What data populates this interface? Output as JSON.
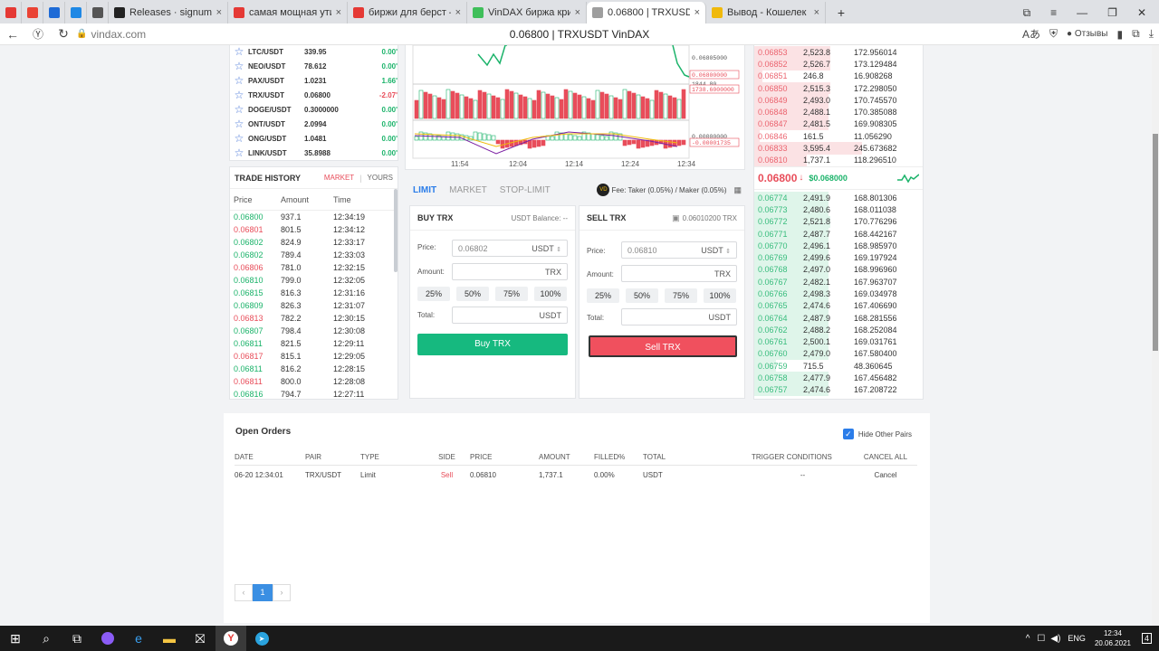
{
  "browser": {
    "tabs": [
      {
        "label": "",
        "icon": "yandex-icon",
        "color": "#e53935"
      },
      {
        "label": "",
        "icon": "gmail-icon",
        "color": "#ea4335"
      },
      {
        "label": "",
        "icon": "chart-app-icon",
        "color": "#1e6bd6"
      },
      {
        "label": "",
        "icon": "circle-app-icon",
        "color": "#1e88e5"
      },
      {
        "label": "",
        "icon": "settings-app-icon",
        "color": "#555555"
      },
      {
        "label": "Releases · signum-network",
        "icon": "github-icon",
        "color": "#222222"
      },
      {
        "label": "самая мощная утилита дл",
        "icon": "yandex-icon",
        "color": "#e53935"
      },
      {
        "label": "биржи для берст — Яндек",
        "icon": "yandex-icon",
        "color": "#e53935"
      },
      {
        "label": "VinDAX биржа криптовал",
        "icon": "vindax-icon",
        "color": "#3fbf5a"
      },
      {
        "label": "0.06800 | TRXUSDT VinD",
        "icon": "page-icon",
        "color": "#9e9e9e",
        "active": true
      },
      {
        "label": "Вывод - Кошелек - Безоп",
        "icon": "wallet-icon",
        "color": "#f0b90b"
      }
    ],
    "url": "vindax.com",
    "title": "0.06800 | TRXUSDT VinDAX",
    "reviews_label": "Отзывы"
  },
  "markets": [
    {
      "pair": "LTC/USDT",
      "price": "339.95",
      "change": "0.00'",
      "dir": "up"
    },
    {
      "pair": "NEO/USDT",
      "price": "78.612",
      "change": "0.00'",
      "dir": "up"
    },
    {
      "pair": "PAX/USDT",
      "price": "1.0231",
      "change": "1.66'",
      "dir": "up"
    },
    {
      "pair": "TRX/USDT",
      "price": "0.06800",
      "change": "-2.07'",
      "dir": "down"
    },
    {
      "pair": "DOGE/USDT",
      "price": "0.3000000",
      "change": "0.00'",
      "dir": "up"
    },
    {
      "pair": "ONT/USDT",
      "price": "2.0994",
      "change": "0.00'",
      "dir": "up"
    },
    {
      "pair": "ONG/USDT",
      "price": "1.0481",
      "change": "0.00'",
      "dir": "up"
    },
    {
      "pair": "LINK/USDT",
      "price": "35.8988",
      "change": "0.00'",
      "dir": "up"
    }
  ],
  "trade_history": {
    "title": "TRADE HISTORY",
    "tab_market": "MARKET",
    "tab_yours": "YOURS",
    "col_price": "Price",
    "col_amount": "Amount",
    "col_time": "Time",
    "rows": [
      {
        "price": "0.06800",
        "amount": "937.1",
        "time": "12:34:19",
        "dir": "up"
      },
      {
        "price": "0.06801",
        "amount": "801.5",
        "time": "12:34:12",
        "dir": "down"
      },
      {
        "price": "0.06802",
        "amount": "824.9",
        "time": "12:33:17",
        "dir": "up"
      },
      {
        "price": "0.06802",
        "amount": "789.4",
        "time": "12:33:03",
        "dir": "up"
      },
      {
        "price": "0.06806",
        "amount": "781.0",
        "time": "12:32:15",
        "dir": "down"
      },
      {
        "price": "0.06810",
        "amount": "799.0",
        "time": "12:32:05",
        "dir": "up"
      },
      {
        "price": "0.06815",
        "amount": "816.3",
        "time": "12:31:16",
        "dir": "up"
      },
      {
        "price": "0.06809",
        "amount": "826.3",
        "time": "12:31:07",
        "dir": "up"
      },
      {
        "price": "0.06813",
        "amount": "782.2",
        "time": "12:30:15",
        "dir": "down"
      },
      {
        "price": "0.06807",
        "amount": "798.4",
        "time": "12:30:08",
        "dir": "up"
      },
      {
        "price": "0.06811",
        "amount": "821.5",
        "time": "12:29:11",
        "dir": "up"
      },
      {
        "price": "0.06817",
        "amount": "815.1",
        "time": "12:29:05",
        "dir": "down"
      },
      {
        "price": "0.06811",
        "amount": "816.2",
        "time": "12:28:15",
        "dir": "up"
      },
      {
        "price": "0.06811",
        "amount": "800.0",
        "time": "12:28:08",
        "dir": "down"
      },
      {
        "price": "0.06816",
        "amount": "794.7",
        "time": "12:27:11",
        "dir": "up"
      }
    ]
  },
  "chart": {
    "time_labels": [
      "11:54",
      "12:04",
      "12:14",
      "12:24",
      "12:34"
    ],
    "price_labels": [
      "0.06805000",
      "0.06800000",
      "1844.80",
      "1738.6000000",
      "0.00000000",
      "-0.00001735"
    ]
  },
  "order_form": {
    "tab_limit": "LIMIT",
    "tab_market": "MARKET",
    "tab_stop": "STOP-LIMIT",
    "fee": "Fee: Taker (0.05%) / Maker (0.05%)",
    "fee_badge": "VD",
    "buy": {
      "title": "BUY TRX",
      "balance": "USDT Balance: --",
      "price_label": "Price:",
      "price_value": "0.06802",
      "price_unit": "USDT",
      "amount_label": "Amount:",
      "amount_unit": "TRX",
      "total_label": "Total:",
      "total_unit": "USDT",
      "button": "Buy TRX"
    },
    "sell": {
      "title": "SELL TRX",
      "balance": "0.06010200 TRX",
      "price_label": "Price:",
      "price_value": "0.06810",
      "price_unit": "USDT",
      "amount_label": "Amount:",
      "amount_unit": "TRX",
      "total_label": "Total:",
      "total_unit": "USDT",
      "button": "Sell TRX"
    },
    "percents": [
      "25%",
      "50%",
      "75%",
      "100%"
    ]
  },
  "orderbook": {
    "asks": [
      {
        "price": "0.06853",
        "amount": "2,523.8",
        "total": "172.956014",
        "depth": 0.45
      },
      {
        "price": "0.06852",
        "amount": "2,526.7",
        "total": "173.129484",
        "depth": 0.45
      },
      {
        "price": "0.06851",
        "amount": "246.8",
        "total": "16.908268",
        "depth": 0.05
      },
      {
        "price": "0.06850",
        "amount": "2,515.3",
        "total": "172.298050",
        "depth": 0.45
      },
      {
        "price": "0.06849",
        "amount": "2,493.0",
        "total": "170.745570",
        "depth": 0.44
      },
      {
        "price": "0.06848",
        "amount": "2,488.1",
        "total": "170.385088",
        "depth": 0.44
      },
      {
        "price": "0.06847",
        "amount": "2,481.5",
        "total": "169.908305",
        "depth": 0.44
      },
      {
        "price": "0.06846",
        "amount": "161.5",
        "total": "11.056290",
        "depth": 0.03
      },
      {
        "price": "0.06833",
        "amount": "3,595.4",
        "total": "245.673682",
        "depth": 0.64
      },
      {
        "price": "0.06810",
        "amount": "1,737.1",
        "total": "118.296510",
        "depth": 0.31
      }
    ],
    "last_price": "0.06800",
    "last_arrow": "↓",
    "last_usd": "$0.068000",
    "bids": [
      {
        "price": "0.06774",
        "amount": "2,491.9",
        "total": "168.801306",
        "depth": 0.44
      },
      {
        "price": "0.06773",
        "amount": "2,480.6",
        "total": "168.011038",
        "depth": 0.44
      },
      {
        "price": "0.06772",
        "amount": "2,521.8",
        "total": "170.776296",
        "depth": 0.45
      },
      {
        "price": "0.06771",
        "amount": "2,487.7",
        "total": "168.442167",
        "depth": 0.44
      },
      {
        "price": "0.06770",
        "amount": "2,496.1",
        "total": "168.985970",
        "depth": 0.44
      },
      {
        "price": "0.06769",
        "amount": "2,499.6",
        "total": "169.197924",
        "depth": 0.44
      },
      {
        "price": "0.06768",
        "amount": "2,497.0",
        "total": "168.996960",
        "depth": 0.44
      },
      {
        "price": "0.06767",
        "amount": "2,482.1",
        "total": "167.963707",
        "depth": 0.44
      },
      {
        "price": "0.06766",
        "amount": "2,498.3",
        "total": "169.034978",
        "depth": 0.44
      },
      {
        "price": "0.06765",
        "amount": "2,474.6",
        "total": "167.406690",
        "depth": 0.44
      },
      {
        "price": "0.06764",
        "amount": "2,487.9",
        "total": "168.281556",
        "depth": 0.44
      },
      {
        "price": "0.06762",
        "amount": "2,488.2",
        "total": "168.252084",
        "depth": 0.44
      },
      {
        "price": "0.06761",
        "amount": "2,500.1",
        "total": "169.031761",
        "depth": 0.44
      },
      {
        "price": "0.06760",
        "amount": "2,479.0",
        "total": "167.580400",
        "depth": 0.44
      },
      {
        "price": "0.06759",
        "amount": "715.5",
        "total": "48.360645",
        "depth": 0.13
      },
      {
        "price": "0.06758",
        "amount": "2,477.9",
        "total": "167.456482",
        "depth": 0.44
      },
      {
        "price": "0.06757",
        "amount": "2,474.6",
        "total": "167.208722",
        "depth": 0.44
      }
    ]
  },
  "open_orders": {
    "title": "Open Orders",
    "hide_other": "Hide Other Pairs",
    "columns": [
      "DATE",
      "PAIR",
      "TYPE",
      "SIDE",
      "PRICE",
      "AMOUNT",
      "FILLED%",
      "TOTAL",
      "TRIGGER CONDITIONS",
      "CANCEL ALL"
    ],
    "rows": [
      {
        "date": "06-20 12:34:01",
        "pair": "TRX/USDT",
        "type": "Limit",
        "side": "Sell",
        "price": "0.06810",
        "amount": "1,737.1",
        "filled": "0.00%",
        "total": "USDT",
        "trigger": "--",
        "action": "Cancel"
      }
    ],
    "pagination": {
      "prev": "‹",
      "page": "1",
      "next": "›"
    }
  },
  "taskbar": {
    "lang": "ENG",
    "time": "12:34",
    "date": "20.06.2021",
    "notifications": "4"
  }
}
